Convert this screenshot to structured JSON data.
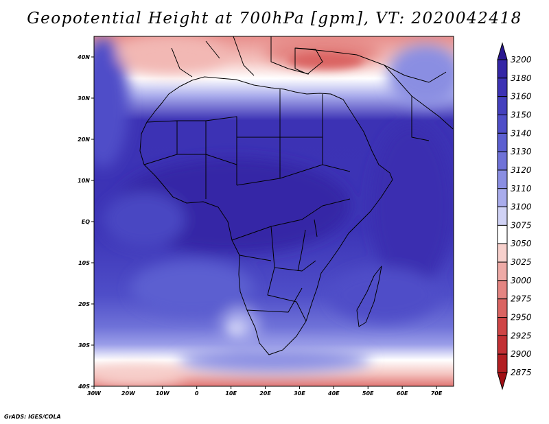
{
  "title": "Geopotential Height at 700hPa [gpm], VT: 2020042418",
  "credit": "GrADS: IGES/COLA",
  "map": {
    "lon_range": [
      -30,
      75
    ],
    "lat_range": [
      -40,
      45
    ],
    "lon_ticks": [
      "30W",
      "20W",
      "10W",
      "0",
      "10E",
      "20E",
      "30E",
      "40E",
      "50E",
      "60E",
      "70E"
    ],
    "lat_ticks": [
      "40S",
      "30S",
      "20S",
      "10S",
      "EQ",
      "10N",
      "20N",
      "30N",
      "40N"
    ]
  },
  "colorbar": {
    "labels": [
      "3200",
      "3180",
      "3160",
      "3150",
      "3140",
      "3130",
      "3120",
      "3110",
      "3100",
      "3075",
      "3050",
      "3025",
      "3000",
      "2975",
      "2950",
      "2925",
      "2900",
      "2875"
    ],
    "colors": [
      "#2a1890",
      "#3426a6",
      "#3c32b4",
      "#4440be",
      "#4f4ec8",
      "#5c5fd0",
      "#6f72d8",
      "#8a8ee2",
      "#a9acec",
      "#d0d2f5",
      "#ffffff",
      "#f7d0cc",
      "#eeaaa6",
      "#e48582",
      "#da6462",
      "#cf4546",
      "#c23034",
      "#b21e22",
      "#a00f14"
    ]
  }
}
